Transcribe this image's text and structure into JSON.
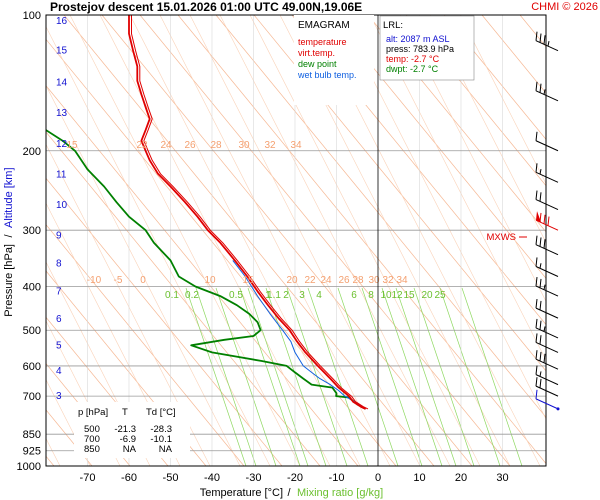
{
  "header": {
    "title": "Prostejov   descent   15.01.2026 01:00 UTC  49.00N,19.06E",
    "copyright": "CHMI © 2026"
  },
  "axes": {
    "x_label": "Temperature [°C]",
    "x_sep": "/",
    "x_label2": "Mixing ratio [g/kg]",
    "y_label": "Pressure [hPa]",
    "y_sep": "/",
    "y_label2": "Altitude [km]"
  },
  "legend": {
    "title": "EMAGRAM",
    "items": [
      {
        "label": "temperature",
        "color": "#e00000"
      },
      {
        "label": "virt.temp.",
        "color": "#e00000"
      },
      {
        "label": "dew point",
        "color": "#008000"
      },
      {
        "label": "wet bulb temp.",
        "color": "#1060e0"
      }
    ]
  },
  "lrl": {
    "title": "LRL:",
    "alt": "alt: 2087 m ASL",
    "press": "press: 783.9 hPa",
    "temp": "temp: -2.7 °C",
    "dwpt": "dwpt: -2.7 °C"
  },
  "mxws_label": "MXWS",
  "table": {
    "headers": [
      "p [hPa]",
      "T",
      "Td [°C]"
    ],
    "rows": [
      [
        "500",
        "-21.3",
        "-28.3"
      ],
      [
        "700",
        "-6.9",
        "-10.1"
      ],
      [
        "850",
        "NA",
        "NA"
      ]
    ]
  },
  "chart_data": {
    "type": "line",
    "x_ticks": [
      -70,
      -60,
      -50,
      -40,
      -30,
      -20,
      -10,
      0,
      10,
      20,
      30
    ],
    "pressure_ticks": [
      100,
      200,
      300,
      400,
      500,
      600,
      700,
      850,
      925,
      1000
    ],
    "altitude_ticks_km": [
      3,
      4,
      5,
      6,
      7,
      8,
      9,
      10,
      11,
      12,
      13,
      14,
      15,
      16
    ],
    "theta_labels_upper": [
      "15",
      "22",
      "24",
      "26",
      "28",
      "30",
      "32",
      "34"
    ],
    "theta_labels_lower": [
      "-10",
      "-5",
      "0",
      "10",
      "15",
      "20",
      "22",
      "24",
      "26",
      "28",
      "30",
      "32",
      "34"
    ],
    "mixing_ratio_labels": [
      "0.1",
      "0.2",
      "0.5",
      "1",
      "1.1",
      "2",
      "3",
      "4",
      "6",
      "8",
      "10",
      "12",
      "15",
      "20",
      "25"
    ],
    "temperature": [
      [
        747,
        -3
      ],
      [
        740,
        -4
      ],
      [
        720,
        -6
      ],
      [
        700,
        -7
      ],
      [
        670,
        -9.5
      ],
      [
        640,
        -11.5
      ],
      [
        600,
        -14.5
      ],
      [
        560,
        -17.5
      ],
      [
        530,
        -19.5
      ],
      [
        500,
        -21.3
      ],
      [
        470,
        -24
      ],
      [
        440,
        -26.5
      ],
      [
        410,
        -29
      ],
      [
        380,
        -31.5
      ],
      [
        350,
        -34.5
      ],
      [
        320,
        -38
      ],
      [
        300,
        -41
      ],
      [
        280,
        -43.5
      ],
      [
        260,
        -46.5
      ],
      [
        240,
        -50
      ],
      [
        225,
        -53
      ],
      [
        210,
        -55
      ],
      [
        200,
        -56
      ],
      [
        190,
        -57
      ],
      [
        180,
        -56
      ],
      [
        170,
        -55
      ],
      [
        160,
        -56
      ],
      [
        150,
        -57
      ],
      [
        140,
        -58
      ],
      [
        130,
        -58
      ],
      [
        120,
        -59
      ],
      [
        110,
        -60
      ],
      [
        100,
        -60
      ]
    ],
    "dew_point": [
      [
        747,
        -3
      ],
      [
        730,
        -5
      ],
      [
        705,
        -7
      ],
      [
        700,
        -10.1
      ],
      [
        690,
        -10
      ],
      [
        670,
        -11
      ],
      [
        660,
        -16
      ],
      [
        640,
        -18
      ],
      [
        620,
        -20
      ],
      [
        600,
        -22
      ],
      [
        585,
        -28
      ],
      [
        560,
        -40
      ],
      [
        540,
        -45
      ],
      [
        525,
        -37
      ],
      [
        515,
        -30
      ],
      [
        500,
        -28.3
      ],
      [
        480,
        -29
      ],
      [
        460,
        -31
      ],
      [
        440,
        -34
      ],
      [
        420,
        -38
      ],
      [
        400,
        -44
      ],
      [
        380,
        -48
      ],
      [
        350,
        -50
      ],
      [
        320,
        -54
      ],
      [
        300,
        -56
      ],
      [
        280,
        -60
      ],
      [
        260,
        -63
      ],
      [
        240,
        -66
      ],
      [
        220,
        -70
      ],
      [
        200,
        -73
      ],
      [
        190,
        -76
      ],
      [
        180,
        -80
      ]
    ],
    "wet_bulb": [
      [
        747,
        -3
      ],
      [
        730,
        -4.5
      ],
      [
        700,
        -8
      ],
      [
        680,
        -9.5
      ],
      [
        660,
        -11.5
      ],
      [
        640,
        -14
      ],
      [
        620,
        -16
      ],
      [
        600,
        -18
      ],
      [
        560,
        -20
      ],
      [
        530,
        -21
      ],
      [
        500,
        -23
      ],
      [
        460,
        -26
      ],
      [
        420,
        -29
      ],
      [
        380,
        -32
      ],
      [
        350,
        -35
      ]
    ],
    "winds": [
      {
        "p": 120,
        "flags": [
          10,
          10,
          10,
          5
        ]
      },
      {
        "p": 155,
        "flags": [
          10,
          10,
          5
        ]
      },
      {
        "p": 200,
        "flags": [
          10
        ]
      },
      {
        "p": 235,
        "flags": [
          10,
          5
        ]
      },
      {
        "p": 270,
        "flags": [
          10,
          10
        ]
      },
      {
        "p": 300,
        "flags": [
          50,
          10,
          10,
          10
        ]
      },
      {
        "p": 340,
        "flags": [
          10,
          10,
          10
        ]
      },
      {
        "p": 380,
        "flags": [
          10,
          5
        ]
      },
      {
        "p": 420,
        "flags": [
          10,
          10,
          5
        ]
      },
      {
        "p": 470,
        "flags": [
          10,
          10
        ]
      },
      {
        "p": 520,
        "flags": [
          10,
          10,
          5
        ]
      },
      {
        "p": 560,
        "flags": [
          10,
          10
        ]
      },
      {
        "p": 610,
        "flags": [
          10,
          10,
          10
        ]
      },
      {
        "p": 660,
        "flags": [
          10,
          5
        ]
      },
      {
        "p": 700,
        "flags": [
          10,
          10
        ]
      },
      {
        "p": 747,
        "flags": [
          10
        ]
      }
    ]
  }
}
